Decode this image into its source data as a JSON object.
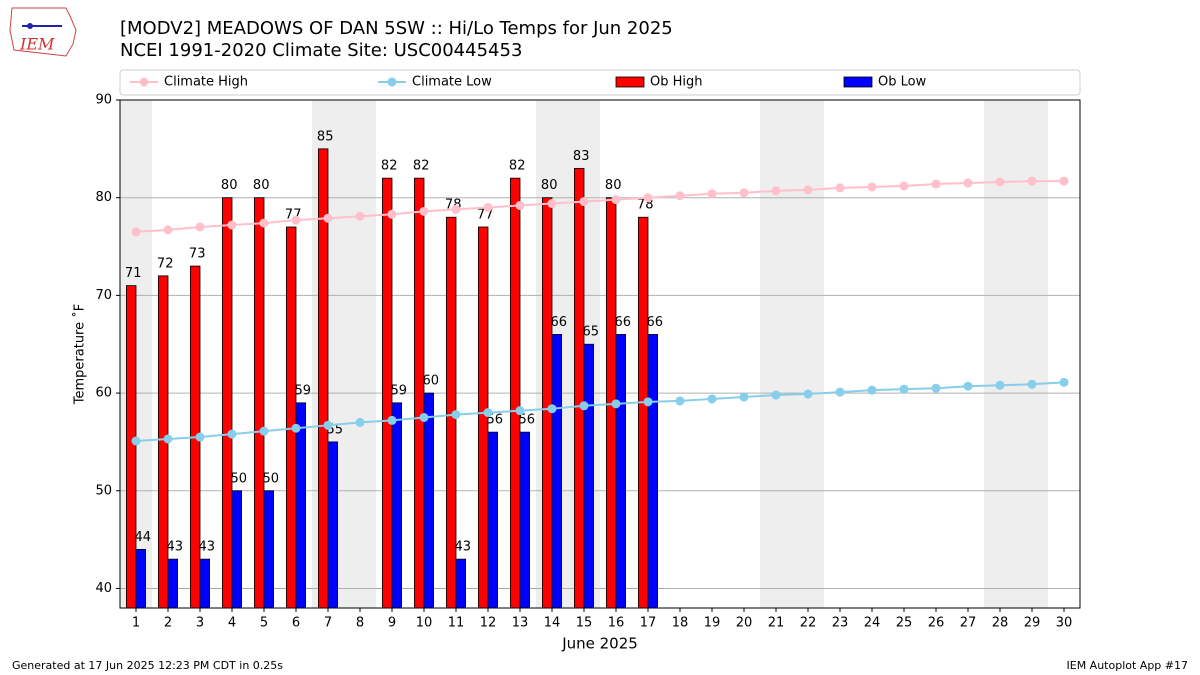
{
  "chart_data": {
    "type": "bar",
    "logo": "IEM",
    "title": "[MODV2] MEADOWS OF DAN 5SW :: Hi/Lo Temps for Jun 2025",
    "subtitle": "NCEI 1991-2020 Climate Site: USC00445453",
    "ylabel": "Temperature ˚F",
    "xlabel": "June 2025",
    "footer_left": "Generated at 17 Jun 2025 12:23 PM CDT in 0.25s",
    "footer_right": "IEM Autoplot App #17",
    "x": [
      1,
      2,
      3,
      4,
      5,
      6,
      7,
      8,
      9,
      10,
      11,
      12,
      13,
      14,
      15,
      16,
      17,
      18,
      19,
      20,
      21,
      22,
      23,
      24,
      25,
      26,
      27,
      28,
      29,
      30
    ],
    "xlim": [
      0.5,
      30.5
    ],
    "xticks": [
      1,
      2,
      3,
      4,
      5,
      6,
      7,
      8,
      9,
      10,
      11,
      12,
      13,
      14,
      15,
      16,
      17,
      18,
      19,
      20,
      21,
      22,
      23,
      24,
      25,
      26,
      27,
      28,
      29,
      30
    ],
    "ylim": [
      38,
      90
    ],
    "yticks": [
      40,
      50,
      60,
      70,
      80,
      90
    ],
    "grid": true,
    "legend": "top",
    "shaded_days": [
      1,
      7,
      8,
      14,
      15,
      21,
      22,
      28,
      29
    ],
    "shade_color": "#eeeeee",
    "series": [
      {
        "name": "Climate High",
        "type": "line",
        "color": "#ffc0cb",
        "values": [
          76.5,
          76.7,
          77.0,
          77.2,
          77.4,
          77.7,
          77.9,
          78.1,
          78.3,
          78.6,
          78.8,
          79.0,
          79.2,
          79.4,
          79.6,
          79.8,
          80.0,
          80.2,
          80.4,
          80.5,
          80.7,
          80.8,
          81.0,
          81.1,
          81.2,
          81.4,
          81.5,
          81.6,
          81.7,
          81.7
        ]
      },
      {
        "name": "Climate Low",
        "type": "line",
        "color": "#87ceeb",
        "values": [
          55.1,
          55.3,
          55.5,
          55.8,
          56.1,
          56.4,
          56.7,
          57.0,
          57.2,
          57.5,
          57.8,
          58.0,
          58.2,
          58.4,
          58.7,
          58.9,
          59.1,
          59.2,
          59.4,
          59.6,
          59.8,
          59.9,
          60.1,
          60.3,
          60.4,
          60.5,
          60.7,
          60.8,
          60.9,
          61.1
        ]
      },
      {
        "name": "Ob High",
        "type": "bar",
        "color": "#ff0000",
        "values": [
          71,
          72,
          73,
          80,
          80,
          77,
          85,
          null,
          82,
          82,
          78,
          77,
          82,
          80,
          83,
          80,
          78,
          null,
          null,
          null,
          null,
          null,
          null,
          null,
          null,
          null,
          null,
          null,
          null,
          null
        ]
      },
      {
        "name": "Ob Low",
        "type": "bar",
        "color": "#0000ff",
        "values": [
          44,
          43,
          43,
          50,
          50,
          59,
          55,
          null,
          59,
          60,
          43,
          56,
          56,
          66,
          65,
          66,
          66,
          null,
          null,
          null,
          null,
          null,
          null,
          null,
          null,
          null,
          null,
          null,
          null,
          null
        ]
      }
    ]
  }
}
